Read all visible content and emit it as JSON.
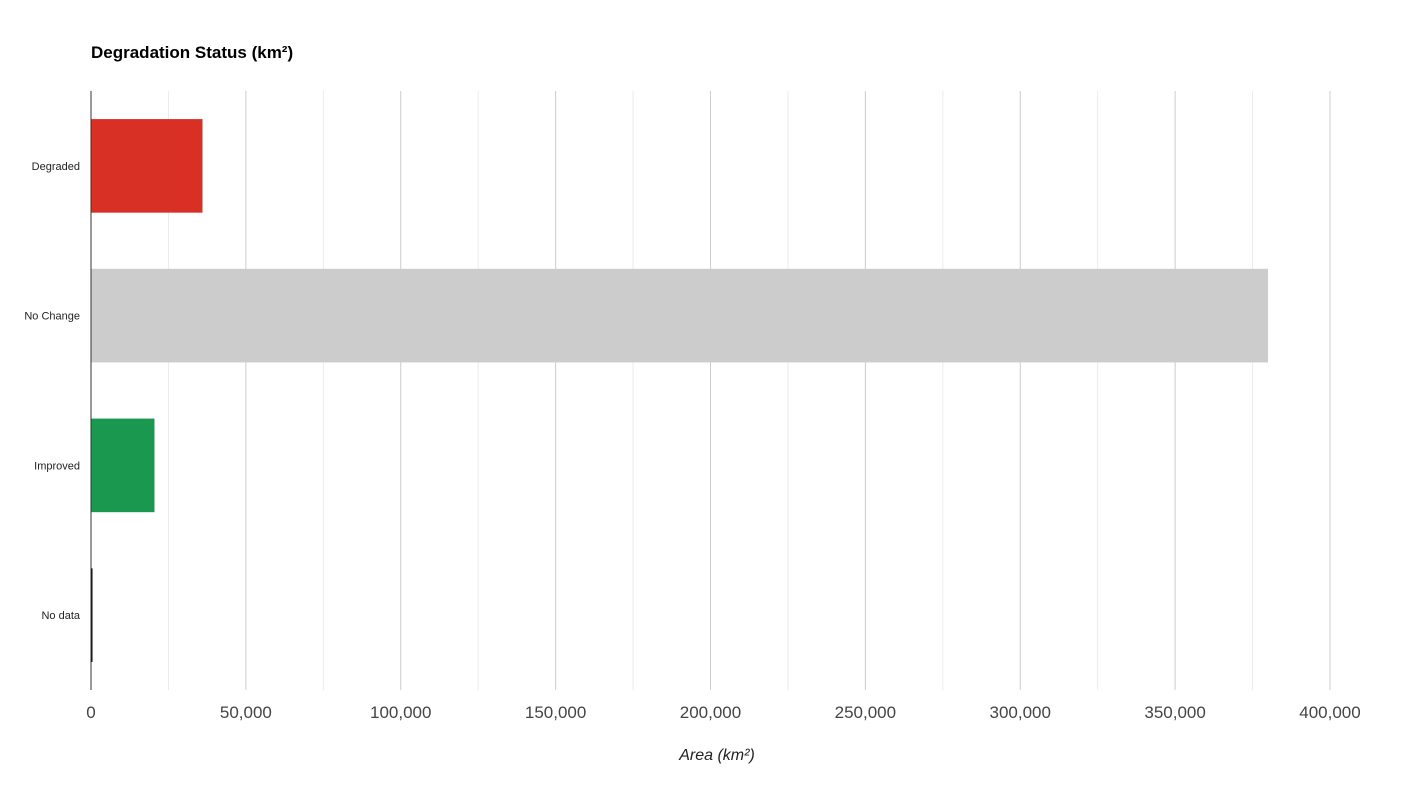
{
  "chart_data": {
    "type": "bar",
    "orientation": "horizontal",
    "title": "Degradation Status (km²)",
    "xlabel": "Area (km²)",
    "ylabel": "",
    "categories": [
      "Degraded",
      "No Change",
      "Improved",
      "No data"
    ],
    "values": [
      36000,
      380000,
      20500,
      400
    ],
    "colors": [
      "#d93025",
      "#cccccc",
      "#1a9850",
      "#000000"
    ],
    "xlim": [
      0,
      400000
    ],
    "x_ticks": [
      0,
      50000,
      100000,
      150000,
      200000,
      250000,
      300000,
      350000,
      400000
    ],
    "x_tick_labels": [
      "0",
      "50,000",
      "100,000",
      "150,000",
      "200,000",
      "250,000",
      "300,000",
      "350,000",
      "400,000"
    ],
    "grid": true,
    "legend": "none"
  }
}
